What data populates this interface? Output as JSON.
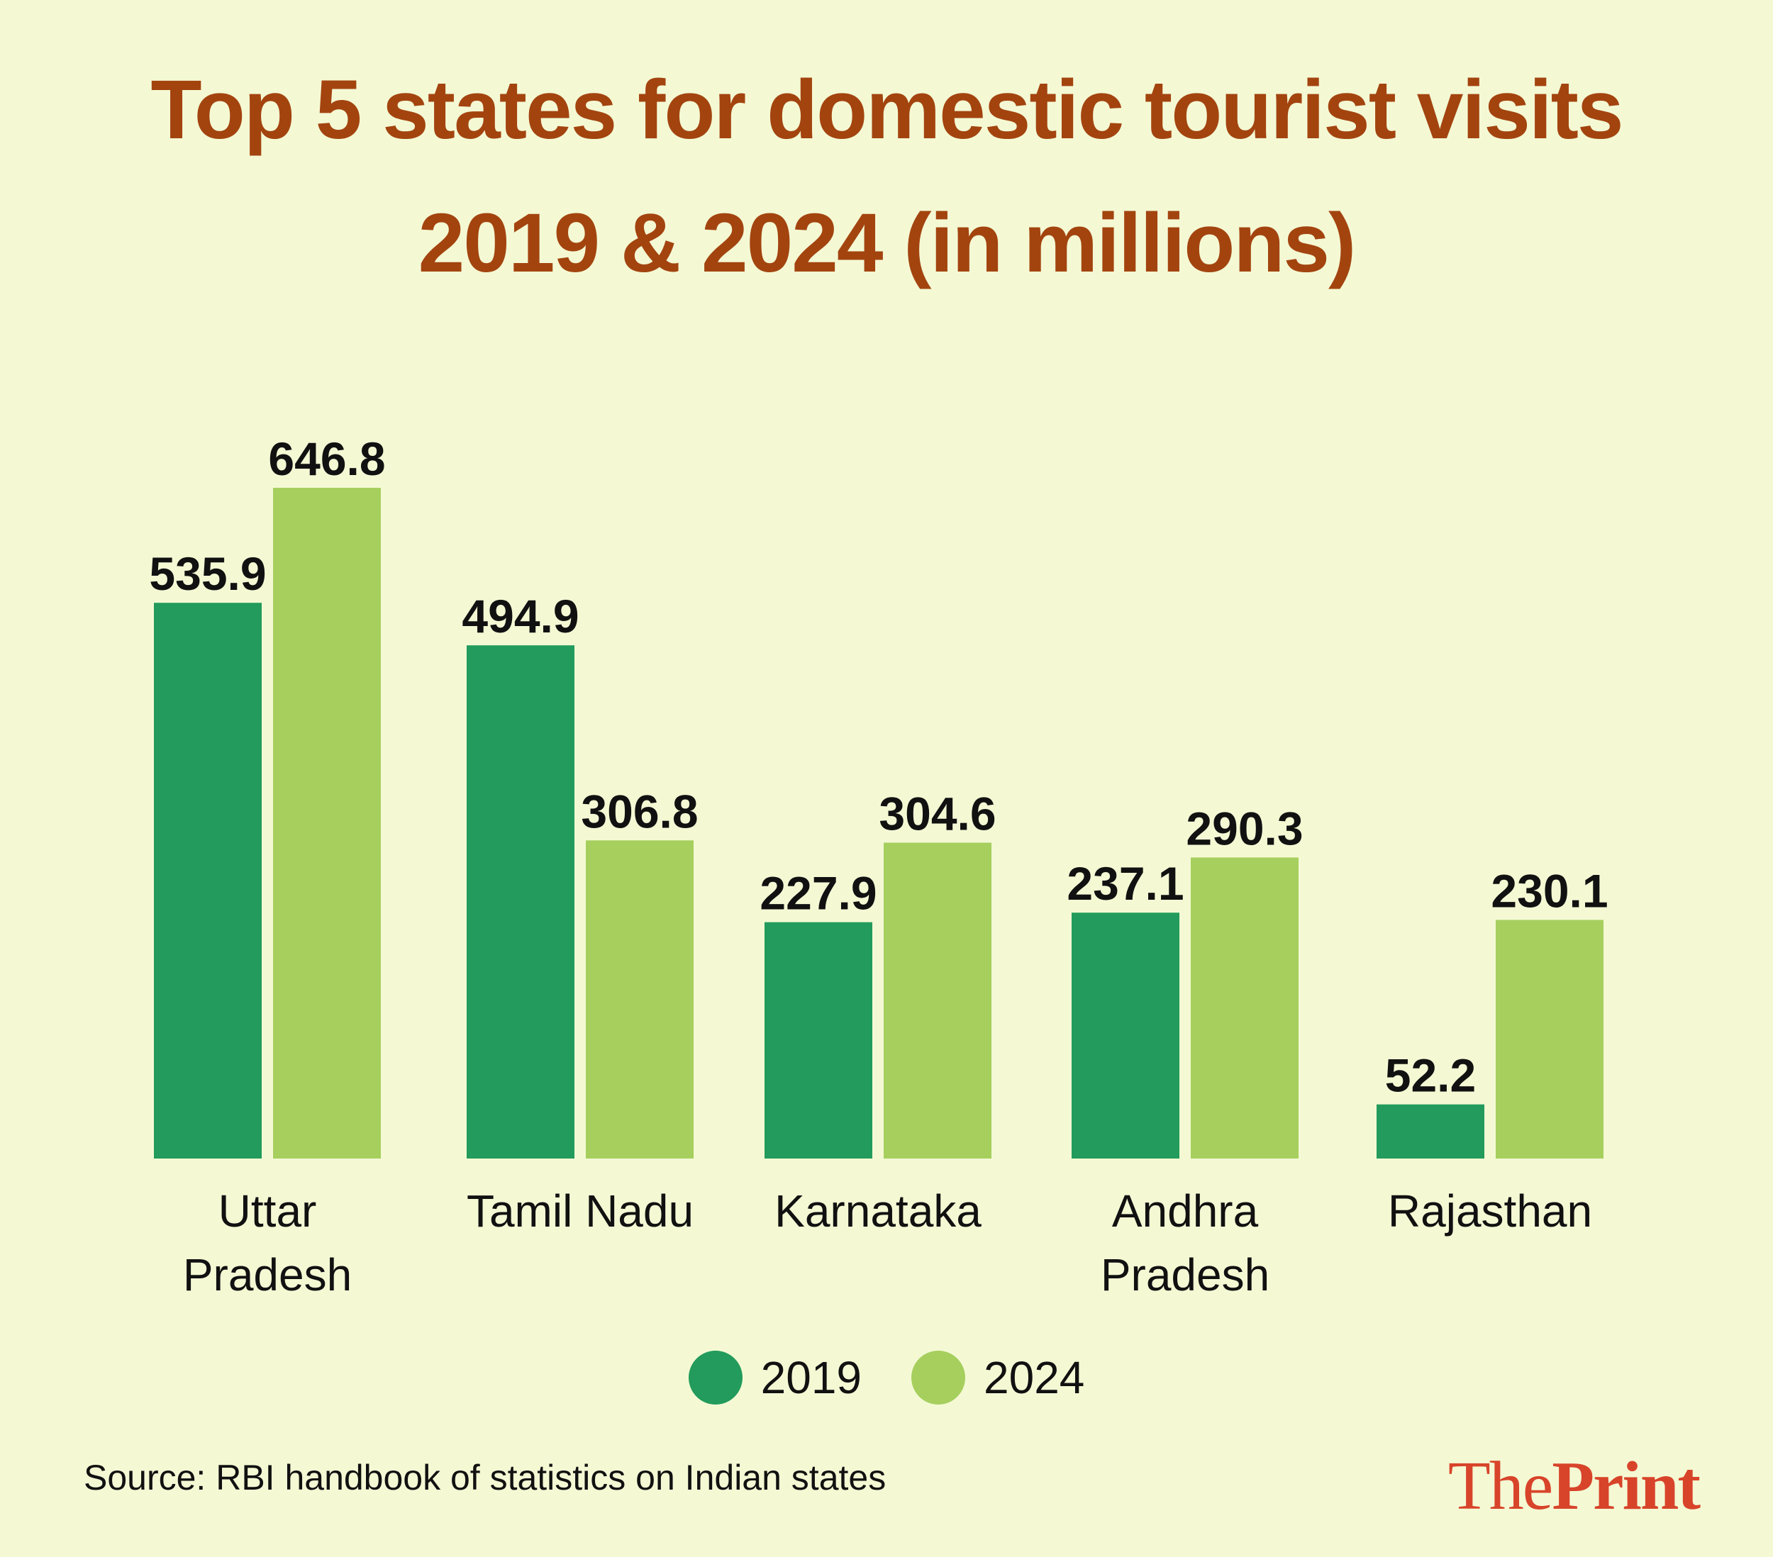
{
  "title": {
    "line1": "Top 5 states for domestic tourist visits",
    "line2": "2019 & 2024 (in millions)"
  },
  "colors": {
    "background": "#f4f9d4",
    "title": "#a3440f",
    "series_2019": "#229b5c",
    "series_2024": "#a6cf5e",
    "logo": "#d8442a"
  },
  "chart_data": {
    "type": "bar",
    "title": "Top 5 states for domestic tourist visits 2019 & 2024 (in millions)",
    "xlabel": "",
    "ylabel": "",
    "categories": [
      [
        "Uttar",
        "Pradesh"
      ],
      [
        "Tamil Nadu"
      ],
      [
        "Karnataka"
      ],
      [
        "Andhra",
        "Pradesh"
      ],
      [
        "Rajasthan"
      ]
    ],
    "series": [
      {
        "name": "2019",
        "values": [
          535.9,
          494.9,
          227.9,
          237.1,
          52.2
        ],
        "labels": [
          "535.9",
          "494.9",
          "227.9",
          "237.1",
          "52.2"
        ]
      },
      {
        "name": "2024",
        "values": [
          646.8,
          306.8,
          304.6,
          290.3,
          230.1
        ],
        "labels": [
          "646.8",
          "306.8",
          "304.6",
          "290.3",
          "230.1"
        ]
      }
    ],
    "ylim": [
      0,
      646.8
    ],
    "grid": false,
    "legend": "bottom-center"
  },
  "legend": {
    "items": [
      {
        "label": "2019"
      },
      {
        "label": "2024"
      }
    ]
  },
  "source": "Source: RBI handbook of statistics on Indian states",
  "logo": {
    "the": "The",
    "print": "Print"
  }
}
